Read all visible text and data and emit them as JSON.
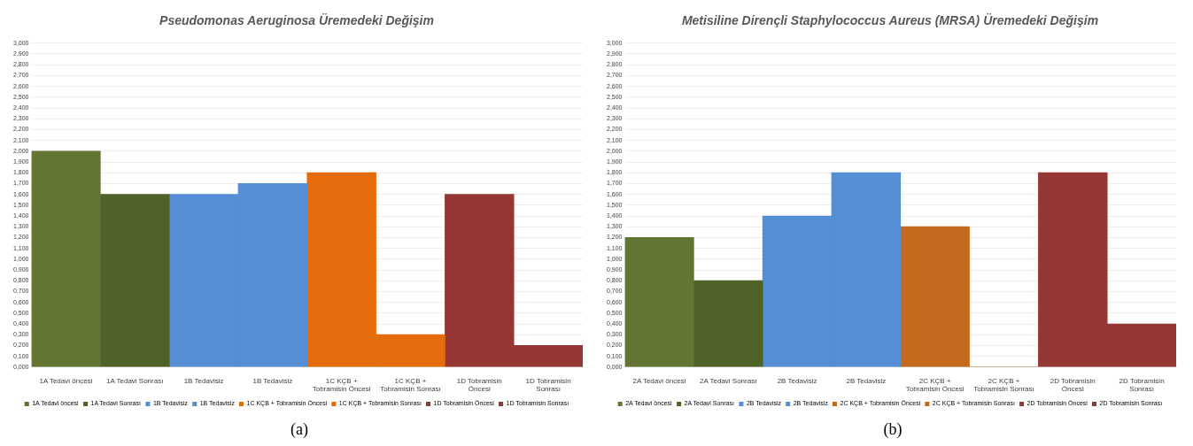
{
  "chart_data": [
    {
      "type": "bar",
      "title": "Pseudomonas Aeruginosa Üremedeki Değişim",
      "categories": [
        "1A Tedavi öncesi",
        "1A Tedavi Sonrası",
        "1B Tedavisiz",
        "1B Tedavisiz",
        "1C KÇB + Tobramisin Öncesi",
        "1C KÇB + Tobramisin Sonrası",
        "1D Tobramisin Öncesi",
        "1D Tobramisin Sonrası"
      ],
      "series": [
        {
          "name": "1A Tedavi öncesi",
          "color": "#637532",
          "values": [
            2.0,
            null,
            null,
            null,
            null,
            null,
            null,
            null
          ]
        },
        {
          "name": "1A Tedavi Sonrası",
          "color": "#4f6228",
          "values": [
            null,
            1.6,
            null,
            null,
            null,
            null,
            null,
            null
          ]
        },
        {
          "name": "1B Tedavisiz",
          "color": "#558ed5",
          "values": [
            null,
            null,
            1.6,
            null,
            null,
            null,
            null,
            null
          ]
        },
        {
          "name": "1B Tedavisiz",
          "color": "#558ed5",
          "values": [
            null,
            null,
            null,
            1.7,
            null,
            null,
            null,
            null
          ]
        },
        {
          "name": "1C KÇB + Tobramisin Öncesi",
          "color": "#e46c0a",
          "values": [
            null,
            null,
            null,
            null,
            1.8,
            null,
            null,
            null
          ]
        },
        {
          "name": "1C KÇB + Tobramisin Sonrası",
          "color": "#e46c0a",
          "values": [
            null,
            null,
            null,
            null,
            null,
            0.3,
            null,
            null
          ]
        },
        {
          "name": "1D Tobramisin Öncesi",
          "color": "#953735",
          "values": [
            null,
            null,
            null,
            null,
            null,
            null,
            1.6,
            null
          ]
        },
        {
          "name": "1D Tobramisin Sonrası",
          "color": "#953735",
          "values": [
            null,
            null,
            null,
            null,
            null,
            null,
            null,
            0.2
          ]
        }
      ],
      "ylim": [
        0,
        3
      ],
      "yticks": [
        {
          "value": 0,
          "label": "0,000"
        },
        {
          "value": 0.1,
          "label": "0,100"
        },
        {
          "value": 0.2,
          "label": "0,200"
        },
        {
          "value": 0.3,
          "label": "0,300"
        },
        {
          "value": 0.4,
          "label": "0,400"
        },
        {
          "value": 0.5,
          "label": "0,500"
        },
        {
          "value": 0.6,
          "label": "0,600"
        },
        {
          "value": 0.7,
          "label": "0,700"
        },
        {
          "value": 0.8,
          "label": "0,800"
        },
        {
          "value": 0.9,
          "label": "0,900"
        },
        {
          "value": 1.0,
          "label": "1,000"
        },
        {
          "value": 1.1,
          "label": "1,100"
        },
        {
          "value": 1.2,
          "label": "1,200"
        },
        {
          "value": 1.3,
          "label": "1,300"
        },
        {
          "value": 1.4,
          "label": "1,400"
        },
        {
          "value": 1.5,
          "label": "1,500"
        },
        {
          "value": 1.6,
          "label": "1,600"
        },
        {
          "value": 1.7,
          "label": "1,700"
        },
        {
          "value": 1.8,
          "label": "1,800"
        },
        {
          "value": 1.9,
          "label": "1,900"
        },
        {
          "value": 2.0,
          "label": "2,000"
        },
        {
          "value": 2.1,
          "label": "2,100"
        },
        {
          "value": 2.2,
          "label": "2,200"
        },
        {
          "value": 2.3,
          "label": "2,300"
        },
        {
          "value": 2.4,
          "label": "2,400"
        },
        {
          "value": 2.5,
          "label": "2,500"
        },
        {
          "value": 2.6,
          "label": "2,600"
        },
        {
          "value": 2.7,
          "label": "2,700"
        },
        {
          "value": 2.8,
          "label": "2,800"
        },
        {
          "value": 2.9,
          "label": "2,900"
        },
        {
          "value": 3.0,
          "label": "3,000"
        }
      ],
      "grid": "y",
      "legend": "bottom",
      "annotations": [
        "(a)"
      ]
    },
    {
      "type": "bar",
      "title": "Metisiline Dirençli Staphylococcus Aureus (MRSA) Üremedeki Değişim",
      "categories": [
        "2A Tedavi öncesi",
        "2A Tedavi Sonrası",
        "2B Tedavisiz",
        "2B Tedavisiz",
        "2C KÇB + Tobramisin Öncesi",
        "2C KÇB + Tobramisin Sonrası",
        "2D Tobramisin Öncesi",
        "2D Tobramisin Sonrası"
      ],
      "series": [
        {
          "name": "2A Tedavi öncesi",
          "color": "#637532",
          "values": [
            1.2,
            null,
            null,
            null,
            null,
            null,
            null,
            null
          ]
        },
        {
          "name": "2A Tedavi Sonrası",
          "color": "#4f6228",
          "values": [
            null,
            0.8,
            null,
            null,
            null,
            null,
            null,
            null
          ]
        },
        {
          "name": "2B Tedavisiz",
          "color": "#558ed5",
          "values": [
            null,
            null,
            1.4,
            null,
            null,
            null,
            null,
            null
          ]
        },
        {
          "name": "2B Tedavisiz",
          "color": "#558ed5",
          "values": [
            null,
            null,
            null,
            1.8,
            null,
            null,
            null,
            null
          ]
        },
        {
          "name": "2C KÇB + Tobramisin Öncesi",
          "color": "#c5691c",
          "values": [
            null,
            null,
            null,
            null,
            1.3,
            null,
            null,
            null
          ]
        },
        {
          "name": "2C KÇB + Tobramisin Sonrası",
          "color": "#c5691c",
          "values": [
            null,
            null,
            null,
            null,
            null,
            0,
            null,
            null
          ]
        },
        {
          "name": "2D Tobramisin Öncesi",
          "color": "#953735",
          "values": [
            null,
            null,
            null,
            null,
            null,
            null,
            1.8,
            null
          ]
        },
        {
          "name": "2D Tobramisin Sonrası",
          "color": "#953735",
          "values": [
            null,
            null,
            null,
            null,
            null,
            null,
            null,
            0.4
          ]
        }
      ],
      "ylim": [
        0,
        3
      ],
      "yticks": [
        {
          "value": 0,
          "label": "0,000"
        },
        {
          "value": 0.1,
          "label": "0,100"
        },
        {
          "value": 0.2,
          "label": "0,200"
        },
        {
          "value": 0.3,
          "label": "0,300"
        },
        {
          "value": 0.4,
          "label": "0,400"
        },
        {
          "value": 0.5,
          "label": "0,500"
        },
        {
          "value": 0.6,
          "label": "0,600"
        },
        {
          "value": 0.7,
          "label": "0,700"
        },
        {
          "value": 0.8,
          "label": "0,800"
        },
        {
          "value": 0.9,
          "label": "0,900"
        },
        {
          "value": 1.0,
          "label": "1,000"
        },
        {
          "value": 1.1,
          "label": "1,100"
        },
        {
          "value": 1.2,
          "label": "1,200"
        },
        {
          "value": 1.3,
          "label": "1,300"
        },
        {
          "value": 1.4,
          "label": "1,400"
        },
        {
          "value": 1.5,
          "label": "1,500"
        },
        {
          "value": 1.6,
          "label": "1,600"
        },
        {
          "value": 1.7,
          "label": "1,700"
        },
        {
          "value": 1.8,
          "label": "1,800"
        },
        {
          "value": 1.9,
          "label": "1,900"
        },
        {
          "value": 2.0,
          "label": "2,000"
        },
        {
          "value": 2.1,
          "label": "2,100"
        },
        {
          "value": 2.2,
          "label": "2,200"
        },
        {
          "value": 2.3,
          "label": "2,300"
        },
        {
          "value": 2.4,
          "label": "2,400"
        },
        {
          "value": 2.5,
          "label": "2,500"
        },
        {
          "value": 2.6,
          "label": "2,600"
        },
        {
          "value": 2.7,
          "label": "2,700"
        },
        {
          "value": 2.8,
          "label": "2,800"
        },
        {
          "value": 2.9,
          "label": "2,900"
        },
        {
          "value": 3.0,
          "label": "3,000"
        }
      ],
      "grid": "y",
      "legend": "bottom",
      "annotations": [
        "(b)"
      ]
    }
  ]
}
